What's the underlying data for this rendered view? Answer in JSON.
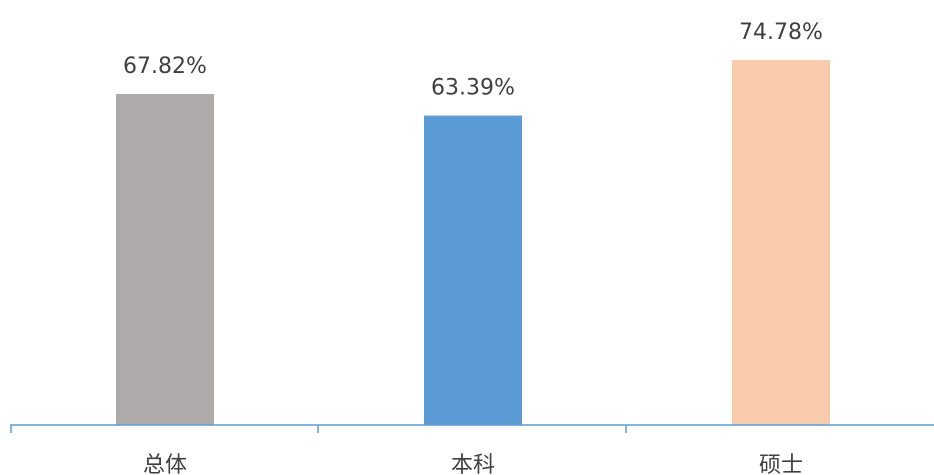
{
  "chart_data": {
    "type": "bar",
    "categories": [
      "总体",
      "本科",
      "硕士"
    ],
    "values": [
      67.82,
      63.39,
      74.78
    ],
    "value_labels": [
      "67.82%",
      "63.39%",
      "74.78%"
    ],
    "bar_colors": [
      "#AFAAAA",
      "#5B9BD5",
      "#F8CBAD"
    ],
    "axis_color": "#5B9BD5",
    "label_color": "#404040",
    "ylim": [
      0,
      80
    ],
    "grid": false,
    "legend": "none"
  }
}
